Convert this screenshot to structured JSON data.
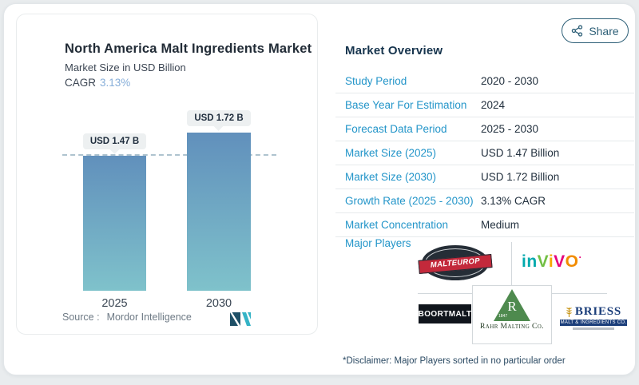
{
  "share": {
    "label": "Share"
  },
  "chart": {
    "title": "North America Malt Ingredients Market",
    "subtitle": "Market Size in USD Billion",
    "cagr_label": "CAGR",
    "cagr_value": "3.13%",
    "source_label": "Source :",
    "source_value": "Mordor Intelligence",
    "bars": [
      {
        "year": "2025",
        "label": "USD 1.47 B"
      },
      {
        "year": "2030",
        "label": "USD 1.72 B"
      }
    ]
  },
  "chart_data": {
    "type": "bar",
    "title": "North America Malt Ingredients Market",
    "ylabel": "Market Size in USD Billion",
    "categories": [
      "2025",
      "2030"
    ],
    "values": [
      1.47,
      1.72
    ],
    "unit": "USD Billion",
    "data_labels": [
      "USD 1.47 B",
      "USD 1.72 B"
    ],
    "cagr_pct": 3.13,
    "ylim": [
      0,
      2
    ],
    "grid": false,
    "legend": "none",
    "reference_line": {
      "style": "dashed",
      "at_value": 1.47
    },
    "bar_gradient": [
      "#6190bc",
      "#7fc2cb"
    ]
  },
  "overview": {
    "title": "Market Overview",
    "rows": [
      {
        "label": "Study Period",
        "value": "2020 - 2030"
      },
      {
        "label": "Base Year For Estimation",
        "value": "2024"
      },
      {
        "label": "Forecast Data Period",
        "value": "2025 - 2030"
      },
      {
        "label": "Market Size (2025)",
        "value": "USD 1.47 Billion"
      },
      {
        "label": "Market Size (2030)",
        "value": "USD 1.72 Billion"
      },
      {
        "label": "Growth Rate (2025 - 2030)",
        "value": "3.13% CAGR"
      },
      {
        "label": "Market Concentration",
        "value": "Medium"
      }
    ],
    "major_players_label": "Major Players",
    "disclaimer": "*Disclaimer: Major Players sorted in no particular order"
  },
  "players": {
    "malteurop": {
      "name": "Malteurop",
      "banner_text": "MALTEUROP"
    },
    "invivo": {
      "name": "InVivo",
      "letters": [
        "i",
        "n",
        "V",
        "i",
        "V",
        "O"
      ],
      "mark": "·",
      "colors": [
        "#00a9ad",
        "#00a9ad",
        "#72bf44",
        "#f6a800",
        "#e5007d",
        "#f28c00"
      ]
    },
    "boortmalt": {
      "name": "Boortmalt",
      "text": "BOORTMALT"
    },
    "rahr": {
      "name": "Rahr Malting Co.",
      "initial": "R",
      "year": "1847",
      "caption": "Rahr Malting Co."
    },
    "briess": {
      "name": "Briess",
      "text": "BRIESS",
      "tagline": "MALT & INGREDIENTS CO."
    }
  },
  "colors": {
    "accent_blue": "#2395c9",
    "navy_text": "#1f2d3d",
    "cagr_value_blue": "#86aed9",
    "bar_top": "#6190bc",
    "bar_bottom": "#7fc2cb",
    "share_teal": "#2d5f77",
    "mordor_logo": [
      "#1e4f66",
      "#35b3c6"
    ],
    "page_bg": "#e9ecee"
  }
}
